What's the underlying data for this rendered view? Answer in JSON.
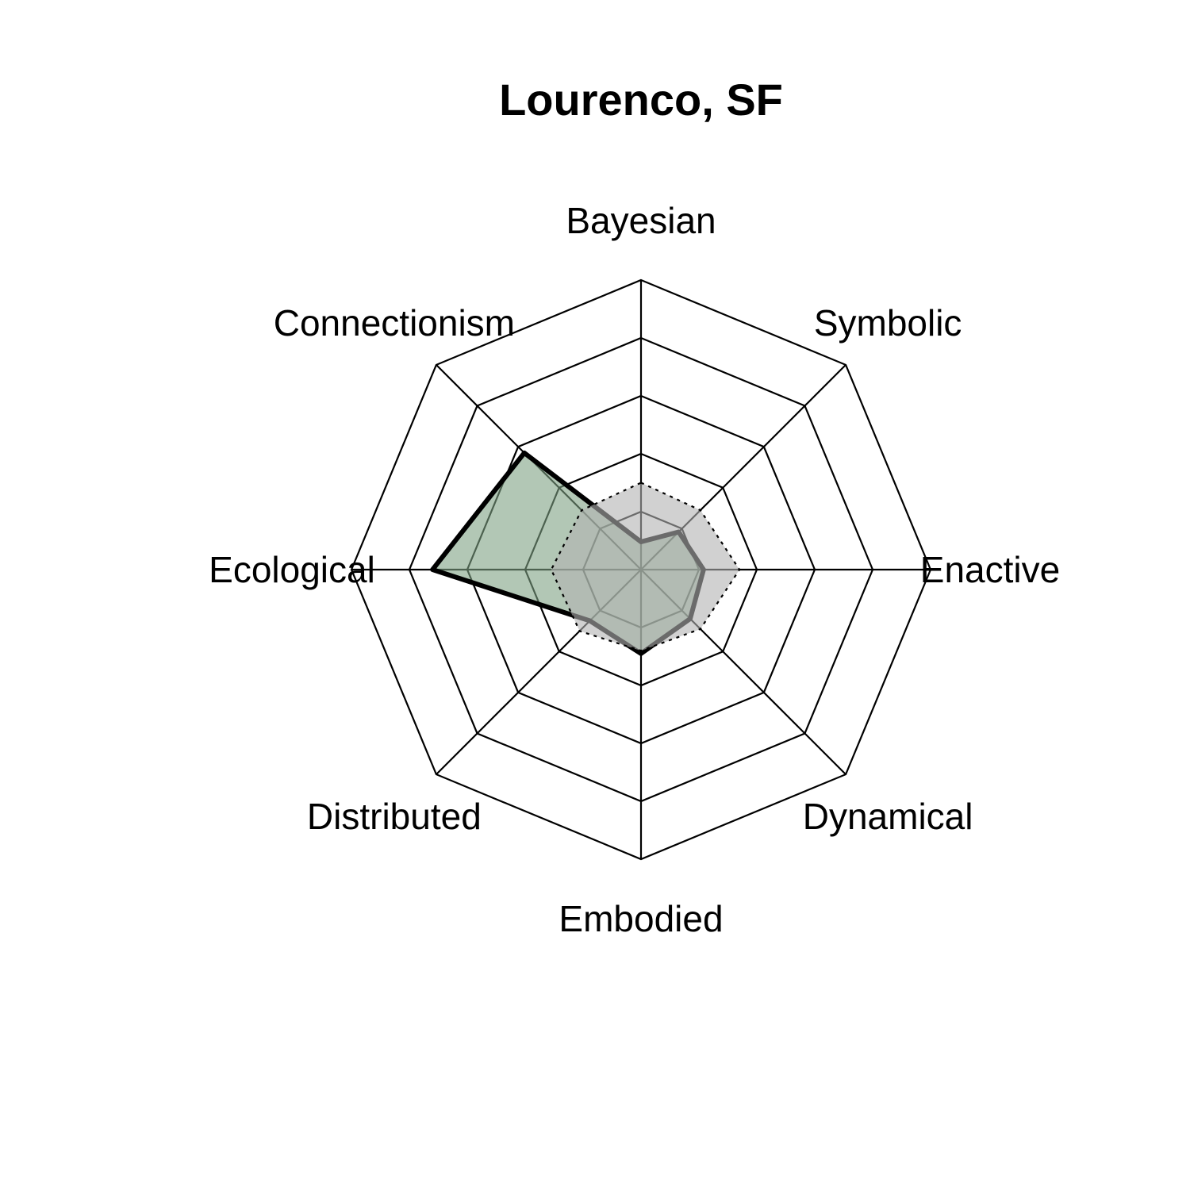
{
  "chart_data": {
    "type": "radar",
    "title": "Lourenco, SF",
    "axes": [
      "Bayesian",
      "Symbolic",
      "Enactive",
      "Dynamical",
      "Embodied",
      "Distributed",
      "Ecological",
      "Connectionism"
    ],
    "range": [
      0,
      5
    ],
    "grid_levels": 5,
    "series": [
      {
        "values": [
          0.48,
          0.92,
          1.08,
          1.2,
          1.45,
          1.25,
          3.6,
          2.85
        ],
        "fill": "#7fa283",
        "stroke": "#000000",
        "style": "solid"
      },
      {
        "values": [
          1.5,
          1.45,
          1.7,
          1.45,
          1.4,
          1.5,
          1.55,
          1.45
        ],
        "fill": "#b3b3b3",
        "stroke": "#000000",
        "style": "dotted"
      }
    ]
  }
}
